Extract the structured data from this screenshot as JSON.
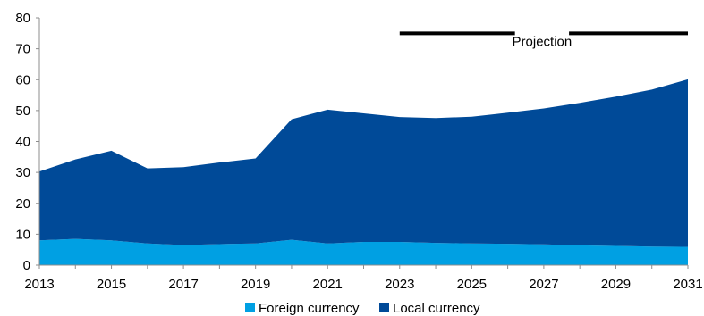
{
  "chart_data": {
    "type": "area",
    "stacked": true,
    "x": [
      2013,
      2014,
      2015,
      2016,
      2017,
      2018,
      2019,
      2020,
      2021,
      2022,
      2023,
      2024,
      2025,
      2026,
      2027,
      2028,
      2029,
      2030,
      2031
    ],
    "xticks": [
      "2013",
      "2015",
      "2017",
      "2019",
      "2021",
      "2023",
      "2025",
      "2027",
      "2029",
      "2031"
    ],
    "yticks": [
      "0",
      "10",
      "20",
      "30",
      "40",
      "50",
      "60",
      "70",
      "80"
    ],
    "ylim": [
      0,
      80
    ],
    "xlim": [
      2013,
      2031
    ],
    "grid": false,
    "legend_position": "bottom-center",
    "series": [
      {
        "name": "Foreign currency",
        "color": "#00a0e3",
        "values": [
          8.0,
          8.5,
          8.0,
          7.0,
          6.5,
          6.8,
          7.0,
          8.2,
          7.0,
          7.5,
          7.5,
          7.2,
          7.0,
          6.9,
          6.7,
          6.4,
          6.2,
          6.0,
          5.9
        ]
      },
      {
        "name": "Local currency",
        "color": "#004a98",
        "values": [
          22.3,
          25.7,
          29.0,
          24.3,
          25.2,
          26.4,
          27.5,
          39.0,
          43.3,
          41.6,
          40.4,
          40.4,
          41.0,
          42.4,
          44.0,
          46.1,
          48.3,
          50.8,
          54.2
        ]
      }
    ],
    "annotation": {
      "text": "Projection",
      "y": 75,
      "line1": [
        2023,
        2026.2
      ],
      "line2": [
        2027.7,
        2031
      ]
    }
  }
}
